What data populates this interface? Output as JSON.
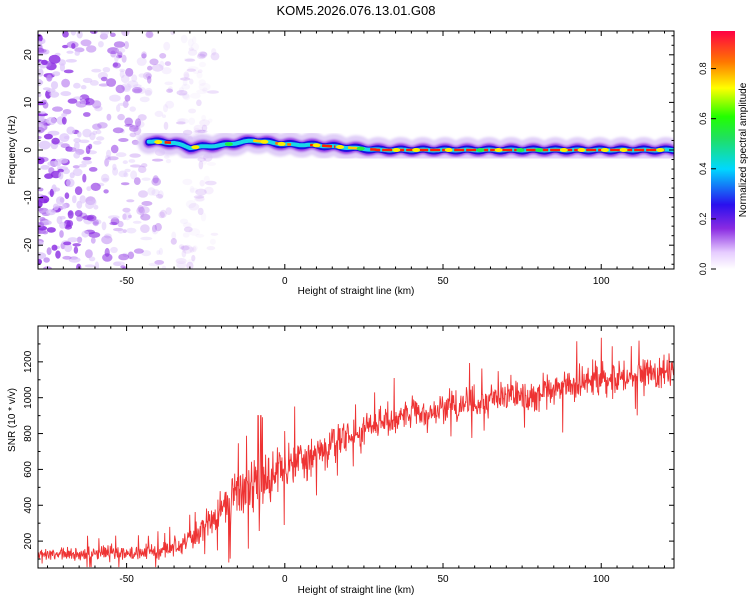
{
  "title": "KOM5.2026.076.13.01.G08",
  "chart_data": [
    {
      "type": "heatmap",
      "name": "spectrogram",
      "xlabel": "Height of straight line (km)",
      "ylabel": "Frequency (Hz)",
      "xlim": [
        -78,
        123
      ],
      "ylim": [
        -25,
        25
      ],
      "x_ticks": [
        -50,
        0,
        50,
        100
      ],
      "x_tick_labels": [
        "-50",
        "0",
        "50",
        "100"
      ],
      "y_ticks": [
        -20,
        -10,
        0,
        10,
        20
      ],
      "y_tick_labels": [
        "-20",
        "-10",
        "0",
        "10",
        "20"
      ],
      "noise_region_x": [
        -78,
        -30
      ],
      "signal_start_x": -43,
      "ridge": {
        "x": [
          -43,
          -35,
          -30,
          -20,
          -10,
          0,
          10,
          20,
          30,
          50,
          70,
          90,
          110,
          123
        ],
        "freq": [
          1.8,
          1.5,
          0.5,
          1.0,
          2.0,
          1.2,
          1.0,
          0.5,
          0.0,
          0.0,
          0.0,
          0.0,
          0.0,
          0.0
        ]
      },
      "colorbar": {
        "label": "Normalized spectral amplitude",
        "range": [
          0.0,
          0.95
        ],
        "ticks": [
          0.0,
          0.2,
          0.4,
          0.6,
          0.8
        ],
        "tick_labels": [
          "0.0",
          "0.2",
          "0.4",
          "0.6",
          "0.8"
        ]
      }
    },
    {
      "type": "line",
      "name": "snr",
      "xlabel": "Height of straight line (km)",
      "ylabel": "SNR (10 * v/v)",
      "xlim": [
        -78,
        123
      ],
      "ylim": [
        50,
        1400
      ],
      "x_ticks": [
        -50,
        0,
        50,
        100
      ],
      "x_tick_labels": [
        "-50",
        "0",
        "50",
        "100"
      ],
      "y_ticks": [
        200,
        400,
        600,
        800,
        1000,
        1200
      ],
      "y_tick_labels": [
        "200",
        "400",
        "600",
        "800",
        "1000",
        "1200"
      ],
      "color": "#ee3333",
      "trend": {
        "x": [
          -78,
          -60,
          -40,
          -30,
          -20,
          -10,
          0,
          10,
          20,
          30,
          40,
          50,
          60,
          70,
          80,
          90,
          100,
          110,
          123
        ],
        "mean": [
          120,
          130,
          140,
          200,
          380,
          520,
          600,
          700,
          780,
          860,
          900,
          940,
          980,
          1000,
          1020,
          1060,
          1100,
          1120,
          1160
        ],
        "spread": [
          80,
          80,
          90,
          140,
          260,
          300,
          260,
          220,
          200,
          180,
          180,
          170,
          180,
          190,
          190,
          190,
          200,
          200,
          200
        ]
      }
    }
  ]
}
